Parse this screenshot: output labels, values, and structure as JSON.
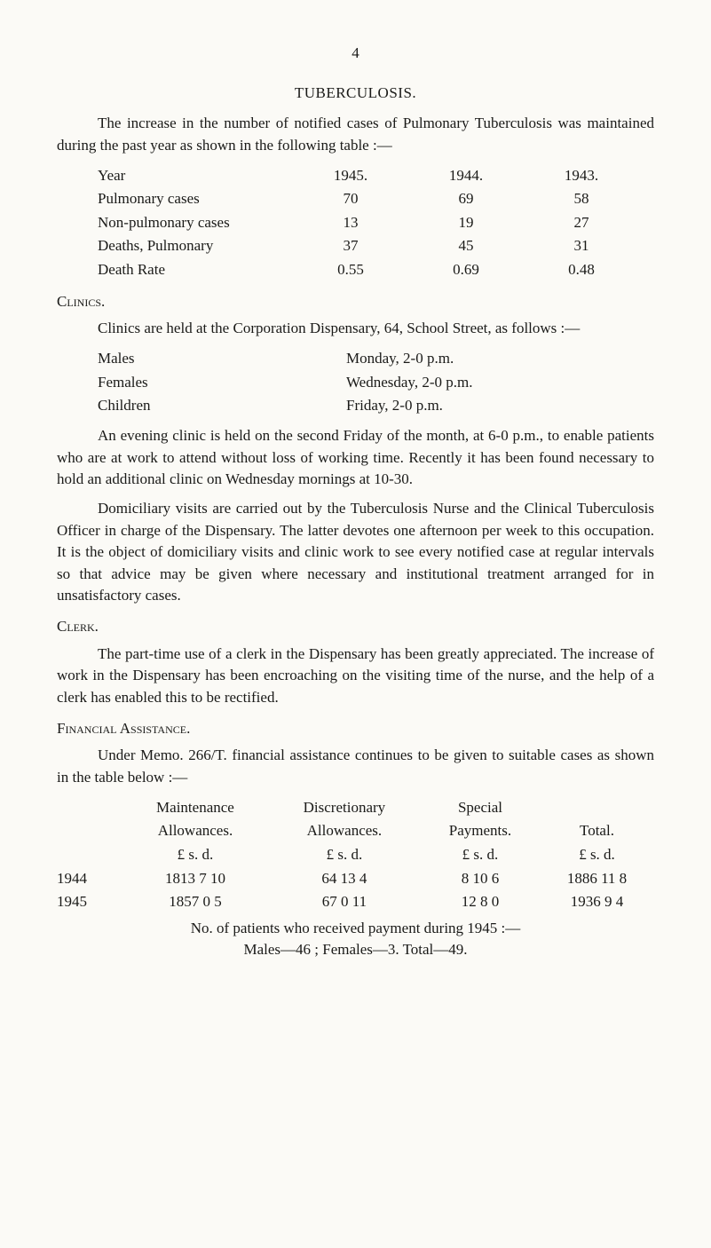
{
  "page_number": "4",
  "section_title": "TUBERCULOSIS.",
  "intro": "The increase in the number of notified cases of Pulmonary Tuberculosis was maintained during the past year as shown in the following table :—",
  "year_table": {
    "headers": [
      "",
      "1945.",
      "1944.",
      "1943."
    ],
    "rows": [
      {
        "label": "Year",
        "c1": "1945.",
        "c2": "1944.",
        "c3": "1943."
      },
      {
        "label": "Pulmonary cases",
        "c1": "70",
        "c2": "69",
        "c3": "58"
      },
      {
        "label": "Non-pulmonary cases",
        "c1": "13",
        "c2": "19",
        "c3": "27"
      },
      {
        "label": "Deaths, Pulmonary",
        "c1": "37",
        "c2": "45",
        "c3": "31"
      },
      {
        "label": "Death Rate",
        "c1": "0.55",
        "c2": "0.69",
        "c3": "0.48"
      }
    ]
  },
  "clinics": {
    "heading": "Clinics.",
    "intro": "Clinics are held at the Corporation Dispensary, 64, School Street, as follows :—",
    "schedule": [
      {
        "who": "Males",
        "when": "Monday, 2-0 p.m."
      },
      {
        "who": "Females",
        "when": "Wednesday, 2-0 p.m."
      },
      {
        "who": "Children",
        "when": "Friday, 2-0 p.m."
      }
    ],
    "para1": "An evening clinic is held on the second Friday of the month, at 6-0 p.m., to enable patients who are at work to attend without loss of working time. Recently it has been found necessary to hold an additional clinic on Wednesday mornings at 10-30.",
    "para2": "Domiciliary visits are carried out by the Tuberculosis Nurse and the Clinical Tuberculosis Officer in charge of the Dispensary. The latter devotes one afternoon per week to this occupation. It is the object of domiciliary visits and clinic work to see every notified case at regular intervals so that advice may be given where necessary and institutional treatment arranged for in unsatisfactory cases."
  },
  "clerk": {
    "heading": "Clerk.",
    "para": "The part-time use of a clerk in the Dispensary has been greatly appreciated. The increase of work in the Dispensary has been encroaching on the visiting time of the nurse, and the help of a clerk has enabled this to be rectified."
  },
  "financial": {
    "heading": "Financial Assistance.",
    "intro": "Under Memo. 266/T. financial assistance continues to be given to suitable cases as shown in the table below :—",
    "columns": {
      "a_top": "Maintenance",
      "a_bot": "Allowances.",
      "b_top": "Discretionary",
      "b_bot": "Allowances.",
      "c_top": "Special",
      "c_bot": "Payments.",
      "d_top": "",
      "d_bot": "Total."
    },
    "unit": "£   s.  d.",
    "rows": [
      {
        "year": "1944",
        "a": "1813   7 10",
        "b": "64 13  4",
        "c": "8 10  6",
        "d": "1886 11  8"
      },
      {
        "year": "1945",
        "a": "1857   0   5",
        "b": "67   0 11",
        "c": "12   8  0",
        "d": "1936   9  4"
      }
    ],
    "note1": "No. of patients who received payment during 1945 :—",
    "note2": "Males—46 ;   Females—3.   Total—49."
  }
}
